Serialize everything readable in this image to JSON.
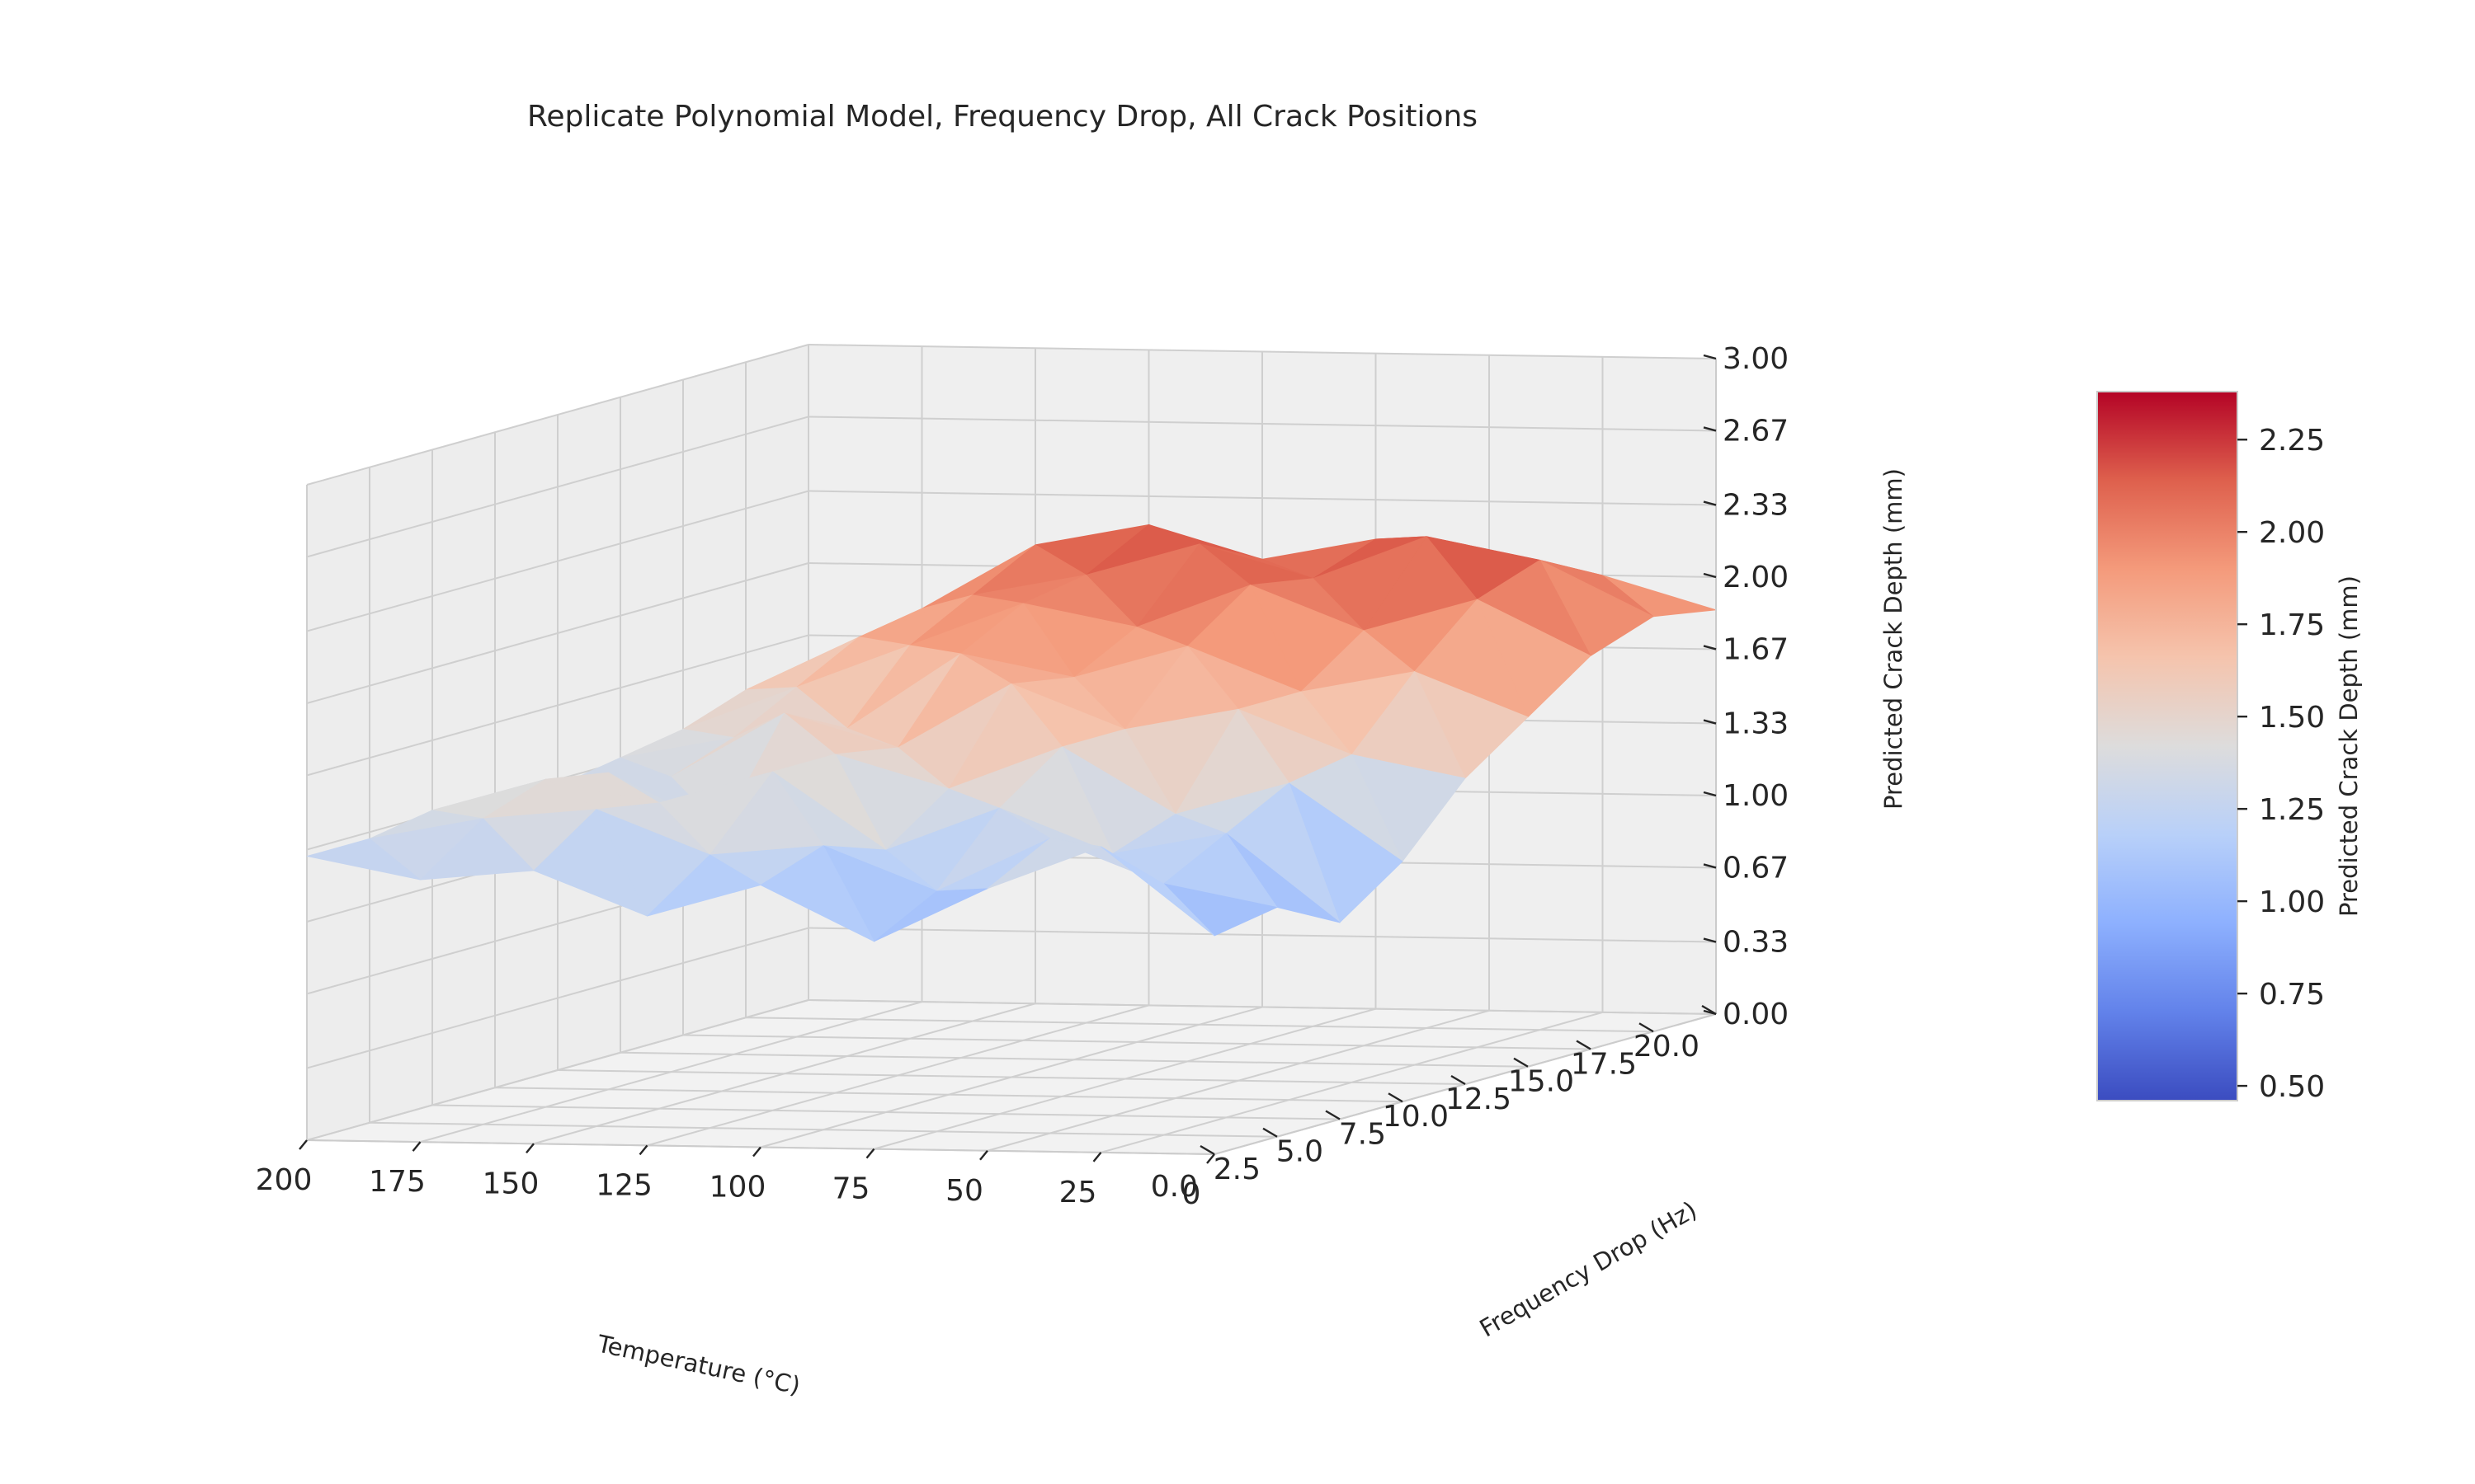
{
  "chart_data": {
    "type": "surface3d",
    "title": "Replicate Polynomial Model, Frequency Drop, All Crack Positions",
    "xlabel": "Temperature ($^\\circ$C)",
    "ylabel": "Frequency Drop (Hz)",
    "zlabel": "Predicted Crack Depth (mm)",
    "colorbar_label": "Predicted Crack Depth (mm)",
    "colormap": "coolwarm",
    "x_ticks": [
      "200",
      "175",
      "150",
      "125",
      "100",
      "75",
      "50",
      "25",
      "0"
    ],
    "y_ticks": [
      "0.0",
      "2.5",
      "5.0",
      "7.5",
      "10.0",
      "12.5",
      "15.0",
      "17.5",
      "20.0"
    ],
    "z_ticks": [
      "0.00",
      "0.33",
      "0.67",
      "1.00",
      "1.33",
      "1.67",
      "2.00",
      "2.33",
      "2.67",
      "3.00"
    ],
    "colorbar_ticks": [
      "0.50",
      "0.75",
      "1.00",
      "1.25",
      "1.50",
      "1.75",
      "2.00",
      "2.25"
    ],
    "xlim": [
      0,
      200
    ],
    "ylim": [
      0,
      20
    ],
    "zlim": [
      0,
      3
    ],
    "clim": [
      0.46,
      2.38
    ],
    "grid": true,
    "colors": {
      "pane": "#f2f2f2",
      "grid": "#cfcfcf",
      "text": "#262626",
      "cold": "#3b4cc0",
      "neutral": "#dddcdc",
      "hot": "#b40426"
    },
    "x": [
      0,
      25,
      50,
      75,
      100,
      125,
      150,
      175,
      200
    ],
    "y": [
      0,
      2.5,
      5,
      7.5,
      10,
      12.5,
      15,
      17.5,
      20
    ],
    "z": [
      [
        1.0,
        1.4,
        1.2,
        0.95,
        1.2,
        1.05,
        1.25,
        1.2,
        1.3
      ],
      [
        1.05,
        1.15,
        1.35,
        1.1,
        1.3,
        1.25,
        1.45,
        1.4,
        1.3
      ],
      [
        0.9,
        1.3,
        1.2,
        1.4,
        1.2,
        1.55,
        1.4,
        1.5,
        1.35
      ],
      [
        1.1,
        1.45,
        1.3,
        1.6,
        1.4,
        1.55,
        1.2,
        1.45,
        1.25
      ],
      [
        1.4,
        1.5,
        1.7,
        1.6,
        1.8,
        1.5,
        1.65,
        1.35,
        1.3
      ],
      [
        1.6,
        1.8,
        1.7,
        1.9,
        1.75,
        1.85,
        1.5,
        1.45,
        1.35
      ],
      [
        1.8,
        2.05,
        1.9,
        2.1,
        1.9,
        2.0,
        1.8,
        1.6,
        1.4
      ],
      [
        1.9,
        2.15,
        2.25,
        2.05,
        2.2,
        2.05,
        1.95,
        1.75,
        1.5
      ],
      [
        1.85,
        2.0,
        2.1,
        2.15,
        2.05,
        2.2,
        2.1,
        1.8,
        1.55
      ]
    ]
  }
}
